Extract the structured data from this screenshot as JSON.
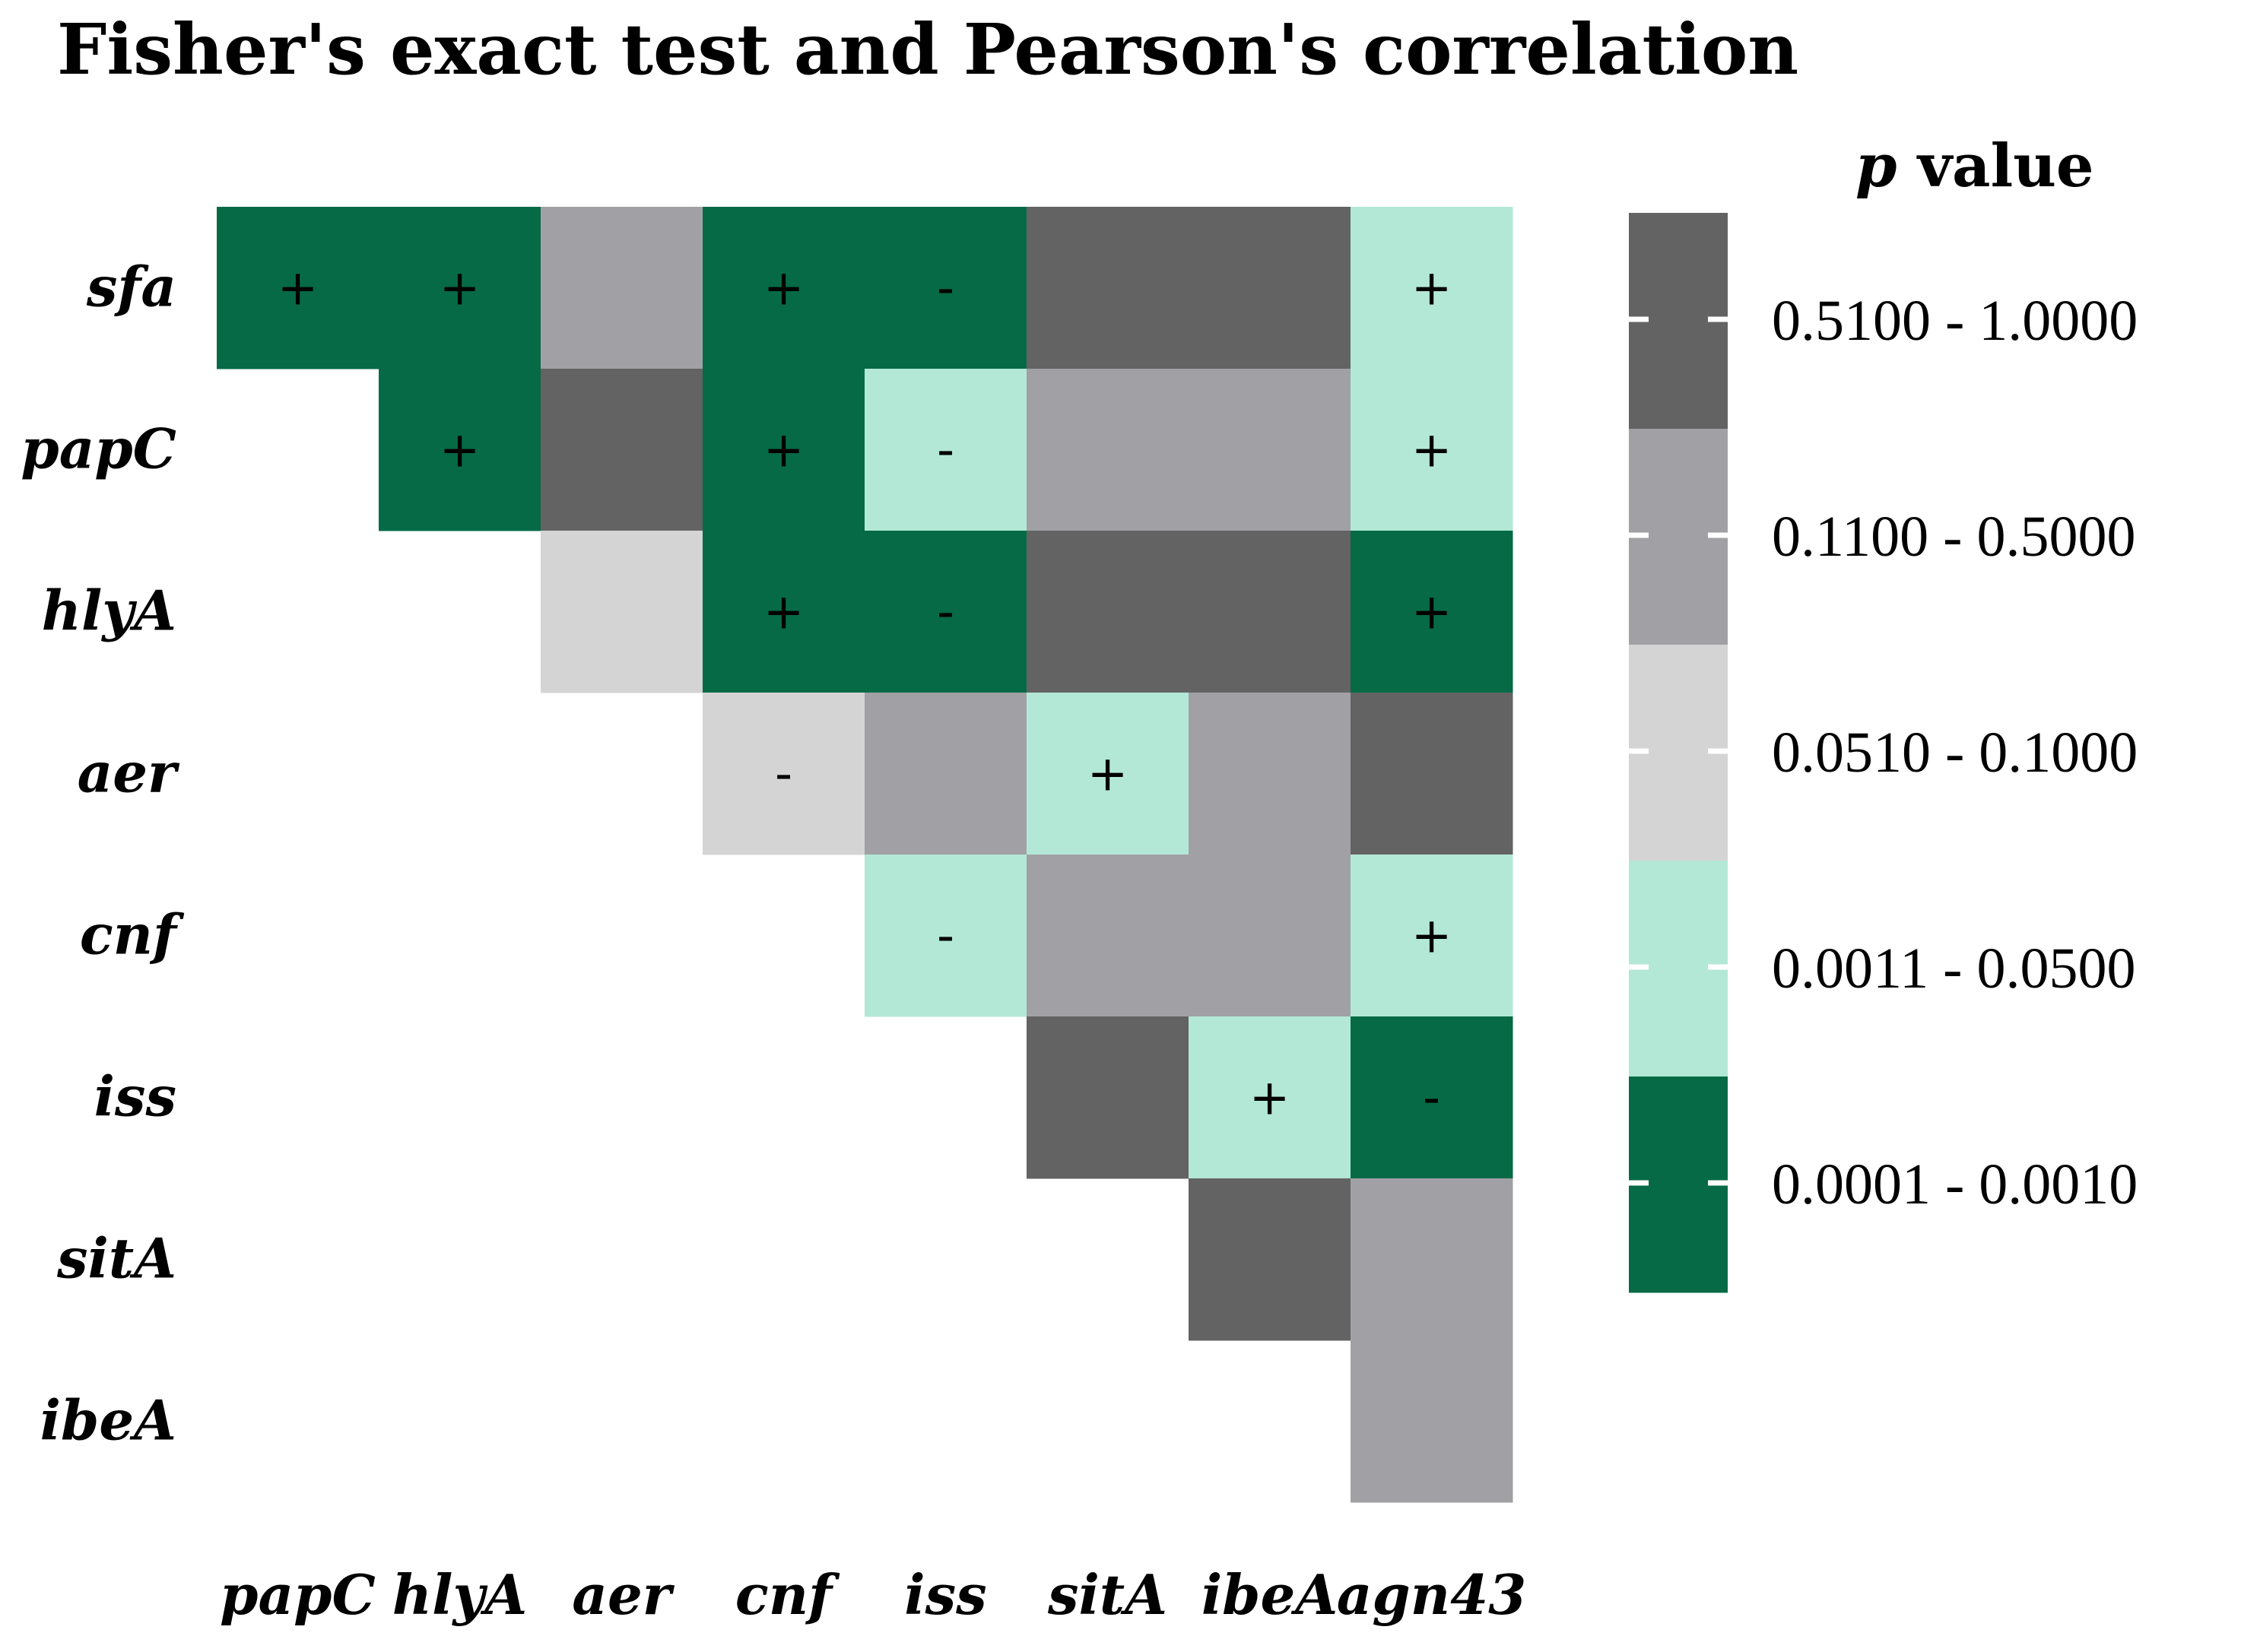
{
  "chart_data": {
    "type": "heatmap",
    "title": "Fisher's exact test and Pearson's correlation",
    "rows": [
      "sfa",
      "papC",
      "hlyA",
      "aer",
      "cnf",
      "iss",
      "sitA",
      "ibeA"
    ],
    "columns": [
      "papC",
      "hlyA",
      "aer",
      "cnf",
      "iss",
      "sitA",
      "ibeA",
      "agn43"
    ],
    "legend": {
      "title_prefix": "p",
      "title_suffix": " value",
      "placement": "right",
      "categories": [
        {
          "label": "0.5100 - 1.0000",
          "color": "#636363"
        },
        {
          "label": "0.1100 - 0.5000",
          "color": "#a1a1a5"
        },
        {
          "label": "0.0510 - 0.1000",
          "color": "#d4d4d4"
        },
        {
          "label": "0.0011 - 0.0500",
          "color": "#b4e8d6"
        },
        {
          "label": "0.0001 - 0.0010",
          "color": "#066a47"
        }
      ]
    },
    "cells": [
      {
        "row": "sfa",
        "column": "papC",
        "p_range": "0.0001 - 0.0010",
        "sign": "+"
      },
      {
        "row": "sfa",
        "column": "hlyA",
        "p_range": "0.0001 - 0.0010",
        "sign": "+"
      },
      {
        "row": "sfa",
        "column": "aer",
        "p_range": "0.1100 - 0.5000",
        "sign": ""
      },
      {
        "row": "sfa",
        "column": "cnf",
        "p_range": "0.0001 - 0.0010",
        "sign": "+"
      },
      {
        "row": "sfa",
        "column": "iss",
        "p_range": "0.0001 - 0.0010",
        "sign": "-"
      },
      {
        "row": "sfa",
        "column": "sitA",
        "p_range": "0.5100 - 1.0000",
        "sign": ""
      },
      {
        "row": "sfa",
        "column": "ibeA",
        "p_range": "0.5100 - 1.0000",
        "sign": ""
      },
      {
        "row": "sfa",
        "column": "agn43",
        "p_range": "0.0011 - 0.0500",
        "sign": "+"
      },
      {
        "row": "papC",
        "column": "hlyA",
        "p_range": "0.0001 - 0.0010",
        "sign": "+"
      },
      {
        "row": "papC",
        "column": "aer",
        "p_range": "0.5100 - 1.0000",
        "sign": ""
      },
      {
        "row": "papC",
        "column": "cnf",
        "p_range": "0.0001 - 0.0010",
        "sign": "+"
      },
      {
        "row": "papC",
        "column": "iss",
        "p_range": "0.0011 - 0.0500",
        "sign": "-"
      },
      {
        "row": "papC",
        "column": "sitA",
        "p_range": "0.1100 - 0.5000",
        "sign": ""
      },
      {
        "row": "papC",
        "column": "ibeA",
        "p_range": "0.1100 - 0.5000",
        "sign": ""
      },
      {
        "row": "papC",
        "column": "agn43",
        "p_range": "0.0011 - 0.0500",
        "sign": "+"
      },
      {
        "row": "hlyA",
        "column": "aer",
        "p_range": "0.0510 - 0.1000",
        "sign": ""
      },
      {
        "row": "hlyA",
        "column": "cnf",
        "p_range": "0.0001 - 0.0010",
        "sign": "+"
      },
      {
        "row": "hlyA",
        "column": "iss",
        "p_range": "0.0001 - 0.0010",
        "sign": "-"
      },
      {
        "row": "hlyA",
        "column": "sitA",
        "p_range": "0.5100 - 1.0000",
        "sign": ""
      },
      {
        "row": "hlyA",
        "column": "ibeA",
        "p_range": "0.5100 - 1.0000",
        "sign": ""
      },
      {
        "row": "hlyA",
        "column": "agn43",
        "p_range": "0.0001 - 0.0010",
        "sign": "+"
      },
      {
        "row": "aer",
        "column": "cnf",
        "p_range": "0.0510 - 0.1000",
        "sign": "-"
      },
      {
        "row": "aer",
        "column": "iss",
        "p_range": "0.1100 - 0.5000",
        "sign": ""
      },
      {
        "row": "aer",
        "column": "sitA",
        "p_range": "0.0011 - 0.0500",
        "sign": "+"
      },
      {
        "row": "aer",
        "column": "ibeA",
        "p_range": "0.1100 - 0.5000",
        "sign": ""
      },
      {
        "row": "aer",
        "column": "agn43",
        "p_range": "0.5100 - 1.0000",
        "sign": ""
      },
      {
        "row": "cnf",
        "column": "iss",
        "p_range": "0.0011 - 0.0500",
        "sign": "-"
      },
      {
        "row": "cnf",
        "column": "sitA",
        "p_range": "0.1100 - 0.5000",
        "sign": ""
      },
      {
        "row": "cnf",
        "column": "ibeA",
        "p_range": "0.1100 - 0.5000",
        "sign": ""
      },
      {
        "row": "cnf",
        "column": "agn43",
        "p_range": "0.0011 - 0.0500",
        "sign": "+"
      },
      {
        "row": "iss",
        "column": "sitA",
        "p_range": "0.5100 - 1.0000",
        "sign": ""
      },
      {
        "row": "iss",
        "column": "ibeA",
        "p_range": "0.0011 - 0.0500",
        "sign": "+"
      },
      {
        "row": "iss",
        "column": "agn43",
        "p_range": "0.0001 - 0.0010",
        "sign": "-"
      },
      {
        "row": "sitA",
        "column": "ibeA",
        "p_range": "0.5100 - 1.0000",
        "sign": ""
      },
      {
        "row": "sitA",
        "column": "agn43",
        "p_range": "0.1100 - 0.5000",
        "sign": ""
      },
      {
        "row": "ibeA",
        "column": "agn43",
        "p_range": "0.1100 - 0.5000",
        "sign": ""
      }
    ]
  }
}
